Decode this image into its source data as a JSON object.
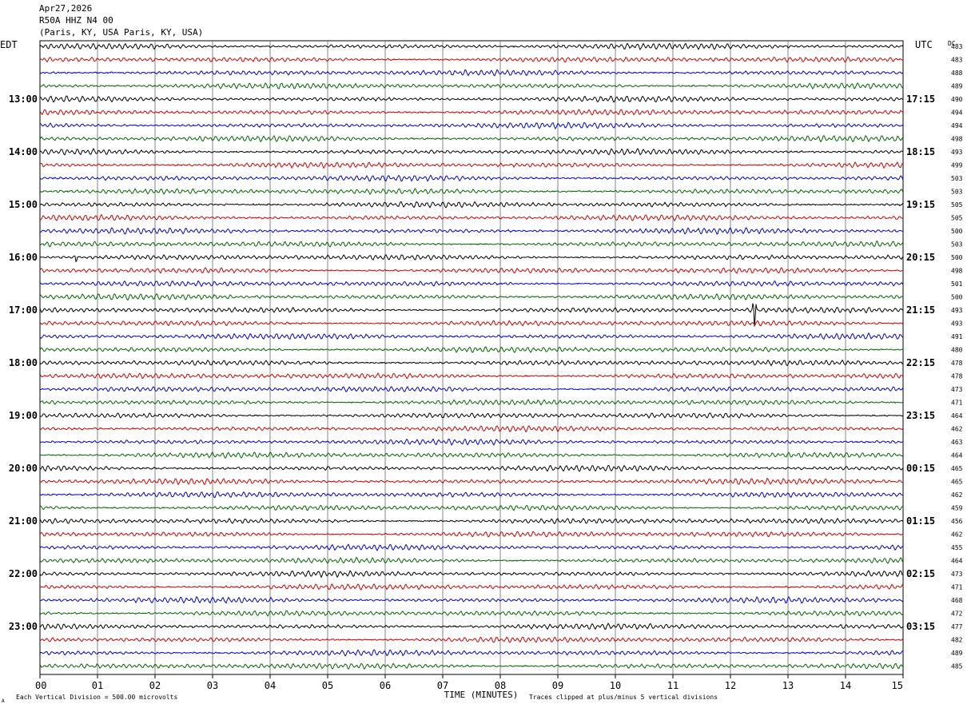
{
  "header": {
    "date": "Apr27,2026",
    "station": "R50A HHZ N4 00",
    "location": "(Paris, KY, USA Paris, KY, USA)"
  },
  "left_timezone": "EDT",
  "right_timezone": "UTC",
  "dc_label": "DC",
  "footer": {
    "scale": "Each Vertical Division =  500.00 microvolts",
    "xlabel": "TIME (MINUTES)",
    "clip_note": "Traces clipped at plus/minus 5 vertical divisions",
    "corner_mark": "A"
  },
  "chart_data": {
    "type": "line",
    "title": "R50A HHZ N4 00",
    "xlabel": "TIME (MINUTES)",
    "xlim": [
      0,
      15
    ],
    "x_ticks": [
      "00",
      "01",
      "02",
      "03",
      "04",
      "05",
      "06",
      "07",
      "08",
      "09",
      "10",
      "11",
      "12",
      "13",
      "14",
      "15"
    ],
    "trace_colors": [
      "#000000",
      "#cc0000",
      "#0000cc",
      "#006600"
    ],
    "traces_per_hour": 4,
    "left_hour_labels": [
      "13:00",
      "14:00",
      "15:00",
      "16:00",
      "17:00",
      "18:00",
      "19:00",
      "20:00",
      "21:00",
      "22:00",
      "23:00"
    ],
    "right_hour_labels": [
      "17:15",
      "18:15",
      "19:15",
      "20:15",
      "21:15",
      "22:15",
      "23:15",
      "00:15",
      "01:15",
      "02:15",
      "03:15"
    ],
    "dc_offsets": [
      483,
      483,
      488,
      489,
      490,
      494,
      494,
      498,
      493,
      499,
      503,
      503,
      505,
      505,
      500,
      503,
      500,
      498,
      501,
      500,
      493,
      493,
      491,
      480,
      478,
      478,
      473,
      471,
      464,
      462,
      463,
      464,
      465,
      465,
      462,
      459,
      456,
      462,
      455,
      464,
      473,
      471,
      468,
      472,
      477,
      482,
      489,
      485
    ],
    "events": [
      {
        "trace": 16,
        "minute": 0.63,
        "amplitude": "small"
      },
      {
        "trace": 20,
        "minute": 12.42,
        "amplitude": "large"
      }
    ]
  }
}
